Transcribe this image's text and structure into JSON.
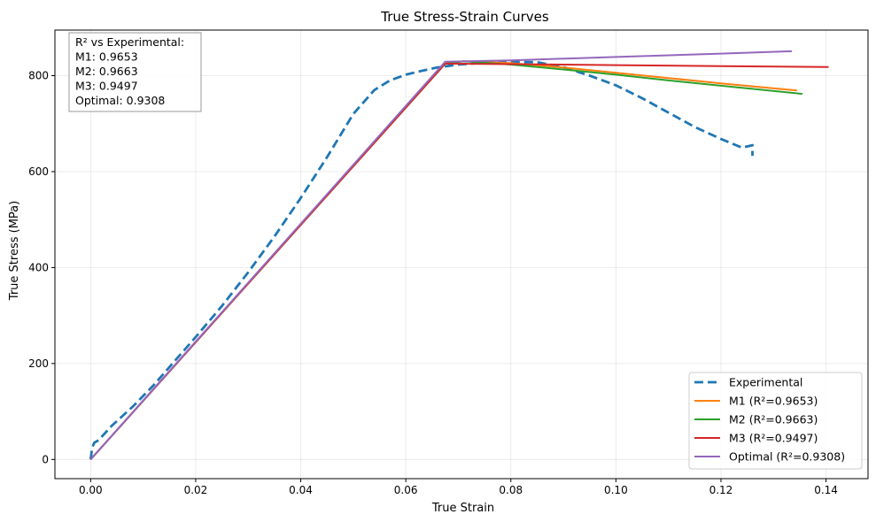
{
  "chart_data": {
    "type": "line",
    "title": "True Stress-Strain Curves",
    "xlabel": "True Strain",
    "ylabel": "True Stress (MPa)",
    "xlim": [
      -0.0068,
      0.148
    ],
    "ylim": [
      -40,
      895
    ],
    "xticks": [
      0.0,
      0.02,
      0.04,
      0.06,
      0.08,
      0.1,
      0.12,
      0.14
    ],
    "xtick_labels": [
      "0.00",
      "0.02",
      "0.04",
      "0.06",
      "0.08",
      "0.10",
      "0.12",
      "0.14"
    ],
    "yticks": [
      0,
      200,
      400,
      600,
      800
    ],
    "ytick_labels": [
      "0",
      "200",
      "400",
      "600",
      "800"
    ],
    "grid": true,
    "legend_position": "lower-right",
    "annotation": {
      "lines": [
        "R² vs Experimental:",
        "M1: 0.9653",
        "M2: 0.9663",
        "M3: 0.9497",
        "Optimal: 0.9308"
      ],
      "position": "upper-left"
    },
    "series": [
      {
        "name": "Experimental",
        "color": "#1f77b4",
        "dashed": true,
        "x": [
          0.0,
          0.0003,
          0.0007,
          0.0015,
          0.004,
          0.008,
          0.012,
          0.016,
          0.02,
          0.025,
          0.03,
          0.035,
          0.04,
          0.045,
          0.05,
          0.054,
          0.057,
          0.06,
          0.063,
          0.066,
          0.07,
          0.075,
          0.08,
          0.085,
          0.09,
          0.095,
          0.1,
          0.105,
          0.11,
          0.115,
          0.12,
          0.124,
          0.126,
          0.126
        ],
        "y": [
          0,
          25,
          35,
          40,
          70,
          110,
          155,
          205,
          255,
          320,
          390,
          465,
          545,
          630,
          720,
          770,
          790,
          802,
          810,
          817,
          823,
          827,
          829,
          828,
          818,
          800,
          780,
          753,
          723,
          693,
          668,
          650,
          655,
          633
        ]
      },
      {
        "name": "M1 (R²=0.9653)",
        "color": "#ff7f0e",
        "dashed": false,
        "x": [
          0.0,
          0.0675,
          0.071,
          0.08,
          0.09,
          0.1,
          0.11,
          0.12,
          0.1345
        ],
        "y": [
          0,
          825,
          830,
          826,
          817,
          806,
          795,
          784,
          769
        ]
      },
      {
        "name": "M2 (R²=0.9663)",
        "color": "#2ca02c",
        "dashed": false,
        "x": [
          0.0,
          0.0675,
          0.071,
          0.08,
          0.09,
          0.1,
          0.11,
          0.12,
          0.1355
        ],
        "y": [
          0,
          825,
          830,
          823,
          813,
          802,
          790,
          779,
          762
        ]
      },
      {
        "name": "M3 (R²=0.9497)",
        "color": "#d62728",
        "dashed": false,
        "x": [
          0.0,
          0.0675,
          0.069,
          0.08,
          0.1,
          0.12,
          0.1405
        ],
        "y": [
          0,
          825,
          825,
          824,
          822,
          820,
          818
        ]
      },
      {
        "name": "Optimal (R²=0.9308)",
        "color": "#9467bd",
        "dashed": false,
        "x": [
          0.0,
          0.0675,
          0.08,
          0.1,
          0.12,
          0.1335
        ],
        "y": [
          0,
          829,
          832,
          839,
          846,
          851
        ]
      }
    ]
  }
}
